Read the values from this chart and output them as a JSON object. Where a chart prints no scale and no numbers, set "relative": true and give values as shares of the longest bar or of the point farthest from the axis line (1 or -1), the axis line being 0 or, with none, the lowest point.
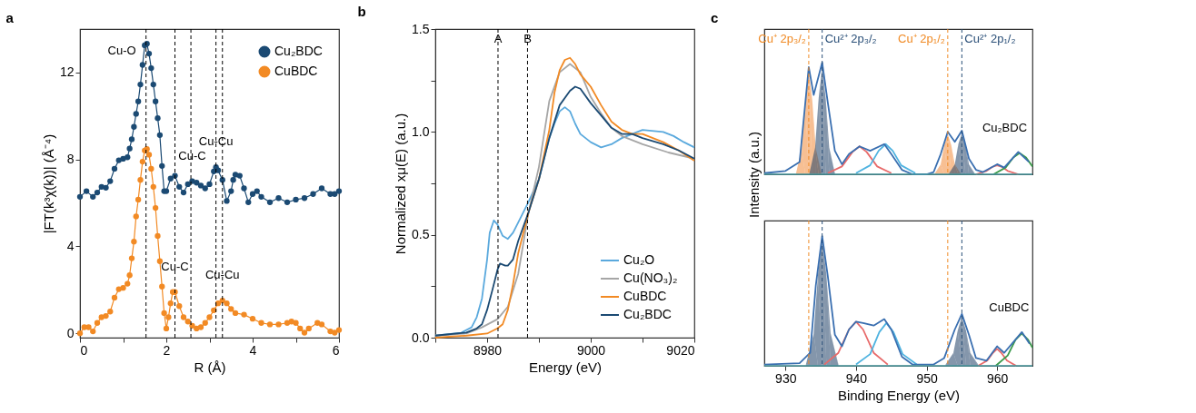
{
  "chart_data": [
    {
      "type": "line",
      "title": "a",
      "xlabel": "R (Å)",
      "ylabel": "|FT(k³χ(k))| (Å⁻⁴)",
      "marker": "circle",
      "line_style": "solid",
      "legend": "top right",
      "grid": false,
      "xlim": [
        0,
        6
      ],
      "xticks": [
        0,
        {
          "value": 1,
          "label": null
        },
        2,
        {
          "value": 3,
          "label": null
        },
        4,
        {
          "value": 5,
          "label": null
        },
        6
      ],
      "ylim": [
        -0.2,
        14
      ],
      "yticks": [
        0,
        4,
        8,
        12
      ],
      "series": [
        {
          "name": "Cu₂BDC",
          "color": "#1b4a73",
          "x": [
            0,
            0.15,
            0.3,
            0.4,
            0.5,
            0.6,
            0.7,
            0.8,
            0.9,
            1.0,
            1.1,
            1.15,
            1.2,
            1.25,
            1.3,
            1.35,
            1.4,
            1.45,
            1.5,
            1.55,
            1.6,
            1.65,
            1.7,
            1.75,
            1.8,
            1.85,
            1.9,
            1.95,
            2.0,
            2.1,
            2.2,
            2.3,
            2.4,
            2.5,
            2.6,
            2.7,
            2.8,
            2.9,
            3.0,
            3.1,
            3.15,
            3.2,
            3.3,
            3.4,
            3.5,
            3.55,
            3.6,
            3.7,
            3.8,
            3.9,
            4.0,
            4.1,
            4.2,
            4.4,
            4.6,
            4.8,
            5.0,
            5.2,
            5.4,
            5.6,
            5.8,
            5.9,
            6.0
          ],
          "values": [
            6.28,
            6.54,
            6.28,
            6.48,
            6.74,
            6.7,
            7.0,
            7.57,
            7.96,
            8.03,
            8.1,
            8.5,
            8.93,
            9.5,
            10.1,
            10.67,
            11.45,
            12.35,
            13.25,
            13.32,
            12.87,
            12.2,
            11.45,
            10.67,
            9.9,
            9.12,
            7.7,
            6.54,
            6.54,
            7.12,
            7.25,
            6.74,
            6.48,
            6.86,
            7.0,
            6.93,
            6.8,
            6.67,
            6.86,
            7.45,
            7.64,
            7.5,
            7.06,
            6.09,
            6.54,
            7.06,
            7.3,
            7.25,
            6.67,
            6.03,
            6.41,
            6.54,
            6.28,
            6.03,
            6.22,
            6.03,
            6.15,
            6.22,
            6.41,
            6.67,
            6.41,
            6.41,
            6.54
          ]
        },
        {
          "name": "CuBDC",
          "color": "#f28a24",
          "x": [
            0,
            0.1,
            0.2,
            0.3,
            0.4,
            0.5,
            0.6,
            0.7,
            0.8,
            0.9,
            1.0,
            1.1,
            1.15,
            1.2,
            1.25,
            1.3,
            1.35,
            1.4,
            1.45,
            1.5,
            1.55,
            1.6,
            1.65,
            1.7,
            1.75,
            1.8,
            1.85,
            1.9,
            1.95,
            2.0,
            2.05,
            2.1,
            2.15,
            2.2,
            2.3,
            2.4,
            2.5,
            2.6,
            2.7,
            2.8,
            2.9,
            3.0,
            3.1,
            3.2,
            3.3,
            3.4,
            3.5,
            3.6,
            3.8,
            4.0,
            4.2,
            4.4,
            4.6,
            4.8,
            4.9,
            5.0,
            5.1,
            5.2,
            5.3,
            5.5,
            5.6,
            5.8,
            5.9,
            6.0
          ],
          "values": [
            0.0,
            0.28,
            0.28,
            0.09,
            0.48,
            0.74,
            0.8,
            1.0,
            1.64,
            2.03,
            2.09,
            2.28,
            2.67,
            3.45,
            4.22,
            5.38,
            6.15,
            7.06,
            7.9,
            8.41,
            8.48,
            8.22,
            7.57,
            6.74,
            5.77,
            4.48,
            3.32,
            2.15,
            0.93,
            0.22,
            0.74,
            1.38,
            1.9,
            1.9,
            1.25,
            0.74,
            0.54,
            0.35,
            0.22,
            0.28,
            0.48,
            0.74,
            1.06,
            1.38,
            1.51,
            1.38,
            1.12,
            0.93,
            0.86,
            0.67,
            0.48,
            0.41,
            0.41,
            0.48,
            0.54,
            0.48,
            0.22,
            0.03,
            0.22,
            0.48,
            0.41,
            0.09,
            0.03,
            0.15
          ]
        }
      ],
      "ref_lines": [
        {
          "axis": "x",
          "value": 1.53,
          "color": "#000000",
          "line_style": "dashed"
        },
        {
          "axis": "x",
          "value": 2.57,
          "color": "#000000",
          "line_style": "dashed"
        },
        {
          "axis": "x",
          "value": 3.15,
          "color": "#000000",
          "line_style": "dashed"
        },
        {
          "axis": "x",
          "value": 2.2,
          "color": "#000000",
          "line_style": "dashed"
        },
        {
          "axis": "x",
          "value": 3.3,
          "color": "#000000",
          "line_style": "dashed"
        }
      ],
      "annotations": [
        {
          "text": "Cu-O",
          "x": 1.55,
          "y": 13.32
        },
        {
          "text": "Cu-C",
          "x": 2.6,
          "y": 7.0
        },
        {
          "text": "Cu-Cu",
          "x": 3.15,
          "y": 7.64
        },
        {
          "text": "Cu-C",
          "x": 2.2,
          "y": 1.9
        },
        {
          "text": "Cu-Cu",
          "x": 3.3,
          "y": 1.51
        }
      ]
    },
    {
      "type": "line",
      "title": "b",
      "xlabel": "Energy (eV)",
      "ylabel": "Normalized xμ(E) (a.u.)",
      "line_style": "solid",
      "legend": "bottom right",
      "grid": false,
      "xlim": [
        8970,
        9020
      ],
      "xticks": [
        {
          "value": 8970,
          "label": null
        },
        8980,
        {
          "value": 8990,
          "label": null
        },
        9000,
        {
          "value": 9010,
          "label": null
        },
        9020
      ],
      "ylim": [
        0,
        1.5
      ],
      "yticks": [
        "0.0",
        {
          "value": 0.25,
          "label": null
        },
        0.5,
        {
          "value": 0.75,
          "label": null
        },
        "1.0",
        {
          "value": 1.25,
          "label": null
        },
        1.5
      ],
      "series": [
        {
          "name": "Cu₂O",
          "color": "#5aa9dd",
          "x": [
            8970,
            8975,
            8977,
            8978,
            8979,
            8980,
            8980.5,
            8981.3,
            8982,
            8983,
            8984,
            8985,
            8986,
            8988,
            8990,
            8992,
            8993,
            8994,
            8995,
            8996,
            8997,
            8998,
            9000,
            9002,
            9004,
            9006,
            9008,
            9010,
            9014,
            9016,
            9018,
            9020
          ],
          "values": [
            0.01,
            0.024,
            0.05,
            0.1,
            0.19,
            0.38,
            0.51,
            0.57,
            0.55,
            0.495,
            0.48,
            0.51,
            0.56,
            0.66,
            0.77,
            0.97,
            1.04,
            1.1,
            1.12,
            1.1,
            1.04,
            0.99,
            0.95,
            0.925,
            0.94,
            0.97,
            0.99,
            1.01,
            1.0,
            0.98,
            0.95,
            0.925
          ]
        },
        {
          "name": "Cu(NO₃)₂",
          "color": "#a6a6a6",
          "x": [
            8970,
            8976,
            8979,
            8982,
            8984,
            8986,
            8988,
            8990,
            8992,
            8994,
            8996,
            8998,
            9000,
            9002,
            9004,
            9006,
            9010,
            9015,
            9020
          ],
          "values": [
            0.01,
            0.02,
            0.05,
            0.09,
            0.15,
            0.31,
            0.61,
            0.83,
            1.15,
            1.29,
            1.33,
            1.29,
            1.17,
            1.09,
            1.02,
            0.98,
            0.94,
            0.9,
            0.87
          ]
        },
        {
          "name": "CuBDC",
          "color": "#f28a24",
          "x": [
            8970,
            8976,
            8980,
            8982,
            8983,
            8984,
            8985,
            8986,
            8988,
            8990,
            8992,
            8993,
            8994,
            8995,
            8996,
            8997,
            8998,
            9000,
            9002,
            9004,
            9006,
            9008,
            9010,
            9014,
            9017,
            9020
          ],
          "values": [
            0.0,
            0.01,
            0.02,
            0.045,
            0.065,
            0.135,
            0.26,
            0.41,
            0.61,
            0.77,
            1.01,
            1.19,
            1.3,
            1.35,
            1.36,
            1.33,
            1.28,
            1.22,
            1.13,
            1.05,
            1.01,
            0.99,
            0.99,
            0.95,
            0.91,
            0.86
          ]
        },
        {
          "name": "Cu₂BDC",
          "color": "#1b4a73",
          "x": [
            8970,
            8976,
            8978,
            8979,
            8980,
            8981,
            8982,
            8982.5,
            8983.5,
            8984,
            8985,
            8986,
            8988,
            8990,
            8992,
            8994,
            8996,
            8997,
            8998,
            9000,
            9002,
            9004,
            9006,
            9008,
            9010,
            9014,
            9017,
            9020
          ],
          "values": [
            0.01,
            0.025,
            0.045,
            0.065,
            0.135,
            0.23,
            0.33,
            0.36,
            0.35,
            0.35,
            0.38,
            0.47,
            0.61,
            0.77,
            0.97,
            1.13,
            1.2,
            1.22,
            1.21,
            1.14,
            1.08,
            1.02,
            0.99,
            0.99,
            0.97,
            0.94,
            0.91,
            0.87
          ]
        }
      ],
      "ref_lines": [
        {
          "axis": "x",
          "value": 8982.1,
          "label": "A",
          "color": "#000000",
          "line_style": "dashed"
        },
        {
          "axis": "x",
          "value": 8987.8,
          "label": "B",
          "color": "#000000",
          "line_style": "dashed"
        }
      ]
    },
    {
      "type": "line",
      "title": "c",
      "ylabel": "Intensity (a.u.)",
      "relative": true,
      "tick_labels": false,
      "grid": false,
      "xlim": [
        927,
        965
      ],
      "xticks": [
        930,
        940,
        950,
        960
      ],
      "series": [
        {
          "type": "area",
          "color": "#f08a3a",
          "x": [
            931.5,
            932.3,
            932.8,
            933.3,
            933.8,
            934.3,
            935.1
          ],
          "values": [
            0.01,
            0.23,
            0.66,
            0.93,
            0.66,
            0.23,
            0.01
          ]
        },
        {
          "type": "area",
          "color": "#1f3f66",
          "x": [
            933.4,
            934.2,
            934.7,
            935.2,
            935.7,
            936.2,
            937
          ],
          "values": [
            0.01,
            0.24,
            0.68,
            0.96,
            0.68,
            0.24,
            0.01
          ]
        },
        {
          "type": "area",
          "color": "#f08a3a",
          "x": [
            951.2,
            952,
            952.5,
            953,
            953.5,
            954,
            954.8
          ],
          "values": [
            0.01,
            0.09,
            0.26,
            0.36,
            0.26,
            0.09,
            0.01
          ]
        },
        {
          "type": "area",
          "color": "#1f3f66",
          "x": [
            953.2,
            954,
            954.5,
            955,
            955.5,
            956,
            956.8
          ],
          "values": [
            0.01,
            0.09,
            0.27,
            0.37,
            0.27,
            0.09,
            0.01
          ]
        },
        {
          "type": "line",
          "color": "#e86a6a",
          "x": [
            936,
            938,
            939.5,
            940.5,
            941.5,
            943,
            945
          ],
          "values": [
            0.01,
            0.07,
            0.2,
            0.25,
            0.2,
            0.07,
            0.01
          ]
        },
        {
          "type": "line",
          "color": "#4fb3e0",
          "x": [
            940,
            942,
            943.2,
            944.2,
            945.2,
            946.4,
            948.4
          ],
          "values": [
            0.01,
            0.08,
            0.21,
            0.27,
            0.21,
            0.08,
            0.01
          ]
        },
        {
          "type": "line",
          "color": "#e86a6a",
          "x": [
            957,
            958.5,
            959.3,
            960,
            960.7,
            961.5,
            963
          ],
          "values": [
            0.0,
            0.03,
            0.065,
            0.08,
            0.065,
            0.03,
            0.0
          ]
        },
        {
          "type": "line",
          "color": "#3a9a4a",
          "x": [
            959.5,
            961.2,
            962.3,
            963.2,
            964.1,
            965
          ],
          "values": [
            0.0,
            0.06,
            0.15,
            0.19,
            0.15,
            0.07
          ]
        },
        {
          "type": "line",
          "color": "#3a6fb0",
          "x": [
            927,
            930,
            932,
            933.3,
            934,
            935.2,
            936,
            937,
            938,
            939,
            940.5,
            942,
            944,
            945,
            946.5,
            948,
            950,
            951,
            952,
            953,
            954,
            955,
            956,
            957,
            958,
            960,
            961,
            963,
            964.5
          ],
          "values": [
            0.01,
            0.03,
            0.11,
            0.96,
            0.71,
            1,
            0.64,
            0.21,
            0.09,
            0.18,
            0.25,
            0.21,
            0.27,
            0.18,
            0.04,
            0,
            0,
            0.02,
            0.18,
            0.38,
            0.29,
            0.39,
            0.14,
            0.04,
            0.02,
            0.09,
            0.06,
            0.2,
            0.11
          ]
        }
      ],
      "ref_lines": [
        {
          "axis": "y",
          "value": 0,
          "color": "#4a9aa0",
          "line_style": "solid"
        },
        {
          "axis": "x",
          "value": 933.3,
          "label": "Cu⁺ 2p₃/₂",
          "color": "#f08a24",
          "line_style": "dashed"
        },
        {
          "axis": "x",
          "value": 935.2,
          "label": "Cu²⁺ 2p₃/₂",
          "color": "#2a4f78",
          "line_style": "dashed"
        },
        {
          "axis": "x",
          "value": 953.0,
          "label": "Cu⁺ 2p₁/₂",
          "color": "#f08a24",
          "line_style": "dashed"
        },
        {
          "axis": "x",
          "value": 955.0,
          "label": "Cu²⁺ 2p₁/₂",
          "color": "#2a4f78",
          "line_style": "dashed"
        }
      ],
      "annotations": [
        {
          "text": "Cu₂BDC",
          "x": 963.2,
          "y": 0.19
        }
      ]
    },
    {
      "type": "line",
      "xlabel": "Binding Energy (eV)",
      "relative": true,
      "tick_labels": "x",
      "grid": false,
      "xlim": [
        927,
        965
      ],
      "xticks": [
        930,
        940,
        950,
        960
      ],
      "series": [
        {
          "type": "area",
          "color": "#1f3f66",
          "x": [
            932.9,
            934,
            934.6,
            935.2,
            935.8,
            936.4,
            937.5
          ],
          "values": [
            0.01,
            0.25,
            0.7,
            0.98,
            0.7,
            0.25,
            0.01
          ]
        },
        {
          "type": "area",
          "color": "#1f3f66",
          "x": [
            952.7,
            953.8,
            954.4,
            955,
            955.6,
            956.2,
            957.3
          ],
          "values": [
            0.01,
            0.1,
            0.27,
            0.38,
            0.27,
            0.1,
            0.01
          ]
        },
        {
          "type": "line",
          "color": "#e86a6a",
          "x": [
            935.5,
            937.5,
            939,
            940,
            941,
            942.5,
            944.5
          ],
          "values": [
            0.01,
            0.1,
            0.28,
            0.34,
            0.28,
            0.1,
            0.01
          ]
        },
        {
          "type": "line",
          "color": "#4fb3e0",
          "x": [
            940,
            942,
            943.3,
            944.3,
            945.3,
            946.6,
            948.6
          ],
          "values": [
            0.01,
            0.09,
            0.26,
            0.33,
            0.26,
            0.09,
            0.01
          ]
        },
        {
          "type": "line",
          "color": "#e86a6a",
          "x": [
            957.3,
            958.6,
            959.4,
            960,
            960.6,
            961.4,
            962.7
          ],
          "values": [
            0.0,
            0.04,
            0.1,
            0.13,
            0.1,
            0.04,
            0.0
          ]
        },
        {
          "type": "line",
          "color": "#3a9a4a",
          "x": [
            959.8,
            961.5,
            962.6,
            963.5,
            964.4,
            965
          ],
          "values": [
            0.0,
            0.08,
            0.2,
            0.25,
            0.2,
            0.14
          ]
        },
        {
          "type": "line",
          "color": "#3a6fb0",
          "x": [
            927,
            932,
            933.5,
            934.3,
            935.2,
            936,
            937,
            938,
            939,
            940,
            941,
            942.5,
            944,
            945,
            946.5,
            948,
            951,
            952.5,
            954,
            955,
            956,
            957,
            958.5,
            960,
            961,
            963.5,
            964.6
          ],
          "values": [
            0.01,
            0.02,
            0.1,
            0.62,
            1,
            0.69,
            0.24,
            0.15,
            0.28,
            0.34,
            0.33,
            0.31,
            0.36,
            0.28,
            0.07,
            0.01,
            0.01,
            0.06,
            0.28,
            0.4,
            0.24,
            0.06,
            0.04,
            0.15,
            0.1,
            0.26,
            0.17
          ]
        }
      ],
      "ref_lines": [
        {
          "axis": "y",
          "value": 0,
          "color": "#4a9aa0",
          "line_style": "solid"
        },
        {
          "axis": "x",
          "value": 933.3,
          "color": "#f08a24",
          "line_style": "dashed"
        },
        {
          "axis": "x",
          "value": 935.2,
          "color": "#2a4f78",
          "line_style": "dashed"
        },
        {
          "axis": "x",
          "value": 953.0,
          "color": "#f08a24",
          "line_style": "dashed"
        },
        {
          "axis": "x",
          "value": 955.0,
          "color": "#2a4f78",
          "line_style": "dashed"
        }
      ],
      "annotations": [
        {
          "text": "CuBDC",
          "x": 963.5,
          "y": 0.25
        }
      ]
    }
  ]
}
